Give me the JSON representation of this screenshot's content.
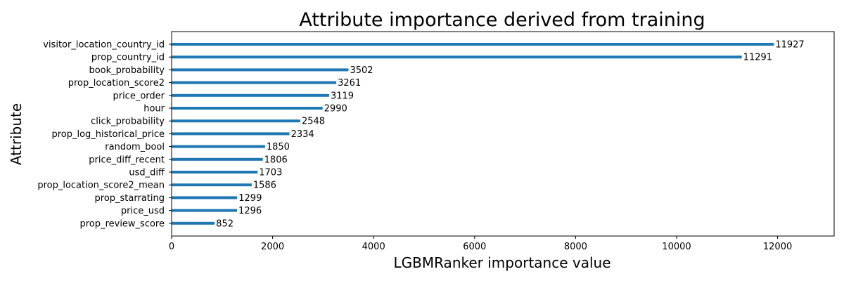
{
  "chart_data": {
    "type": "bar",
    "orientation": "horizontal",
    "title": "Attribute importance derived from training",
    "xlabel": "LGBMRanker importance value",
    "ylabel": "Attribute",
    "xlim": [
      0,
      13120
    ],
    "xticks": [
      0,
      2000,
      4000,
      6000,
      8000,
      10000,
      12000
    ],
    "grid": false,
    "color": "#1f77b4",
    "categories": [
      "visitor_location_country_id",
      "prop_country_id",
      "book_probability",
      "prop_location_score2",
      "price_order",
      "hour",
      "click_probability",
      "prop_log_historical_price",
      "random_bool",
      "price_diff_recent",
      "usd_diff",
      "prop_location_score2_mean",
      "prop_starrating",
      "price_usd",
      "prop_review_score"
    ],
    "values": [
      11927,
      11291,
      3502,
      3261,
      3119,
      2990,
      2548,
      2334,
      1850,
      1806,
      1703,
      1586,
      1299,
      1296,
      852
    ]
  }
}
